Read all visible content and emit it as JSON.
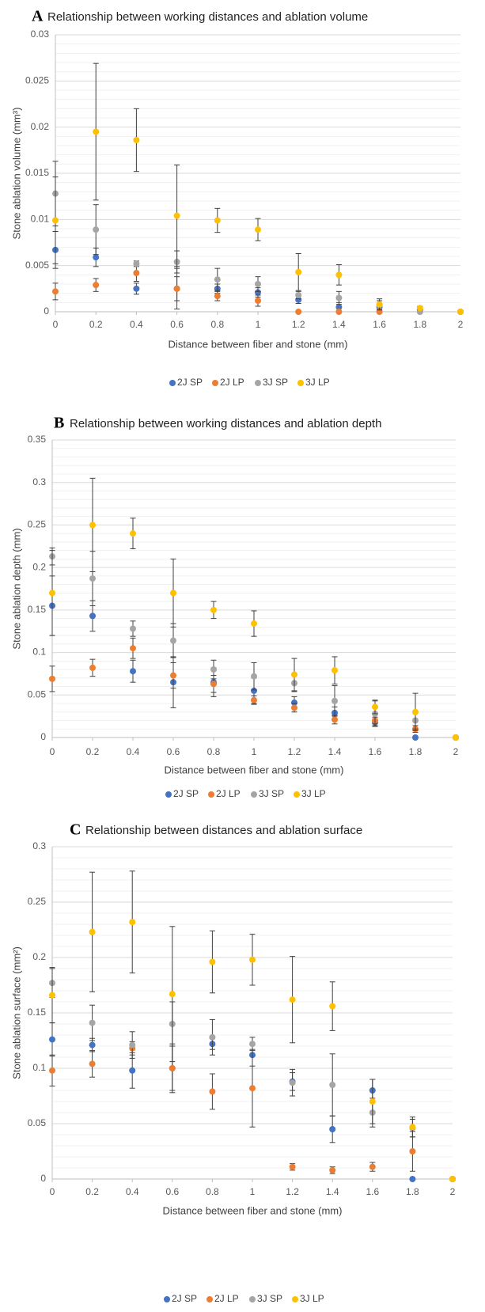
{
  "colors": {
    "2J SP": "#4472C4",
    "2J LP": "#ED7D31",
    "3J SP": "#A5A5A5",
    "3J LP": "#FFC000",
    "error_bar": "#404040",
    "grid": "#D9D9D9"
  },
  "chart_data": [
    {
      "type": "scatter",
      "letter": "A",
      "title": "Relationship between working distances and ablation volume",
      "xlabel": "Distance between fiber and stone (mm)",
      "ylabel": "Stone ablation volume (mm³)",
      "xlim": [
        0,
        2
      ],
      "ylim": [
        0,
        0.03
      ],
      "x_ticks": [
        "0",
        "0.2",
        "0.4",
        "0.6",
        "0.8",
        "1",
        "1.2",
        "1.4",
        "1.6",
        "1.8",
        "2"
      ],
      "y_ticks": [
        "0",
        "0.005",
        "0.01",
        "0.015",
        "0.02",
        "0.025",
        "0.03"
      ],
      "grid": "horizontal",
      "legend_position": "bottom",
      "series": [
        {
          "name": "2J SP",
          "x": [
            0,
            0.2,
            0.4,
            0.6,
            0.8,
            1,
            1.2,
            1.4,
            1.6,
            1.8,
            2
          ],
          "y": [
            0.0067,
            0.0059,
            0.0025,
            0.0025,
            0.0025,
            0.0021,
            0.0013,
            0.0005,
            0.0005,
            0.0002,
            0
          ],
          "err": [
            0.002,
            0.001,
            0.0006,
            0.0022,
            0.0005,
            0.0005,
            0.0004,
            0.0005,
            0.0004,
            0.0002,
            0
          ]
        },
        {
          "name": "2J LP",
          "x": [
            0,
            0.2,
            0.4,
            0.6,
            0.8,
            1,
            1.2,
            1.4,
            1.6,
            1.8,
            2
          ],
          "y": [
            0.0022,
            0.0029,
            0.0042,
            0.0025,
            0.0017,
            0.0012,
            0,
            0,
            0,
            0,
            0
          ],
          "err": [
            0.0009,
            0.0007,
            0.0009,
            0.0013,
            0.0005,
            0.0006,
            0,
            0,
            0,
            0,
            0
          ]
        },
        {
          "name": "3J SP",
          "x": [
            0,
            0.2,
            0.4,
            0.6,
            0.8,
            1,
            1.2,
            1.4,
            1.6,
            1.8,
            2
          ],
          "y": [
            0.0128,
            0.0089,
            0.0052,
            0.0054,
            0.0035,
            0.003,
            0.0018,
            0.0015,
            0.0007,
            0,
            0
          ],
          "err": [
            0.0035,
            0.0027,
            0.0003,
            0.0012,
            0.0012,
            0.0008,
            0.0004,
            0.0007,
            0.0005,
            0,
            0
          ]
        },
        {
          "name": "3J LP",
          "x": [
            0,
            0.2,
            0.4,
            0.6,
            0.8,
            1,
            1.2,
            1.4,
            1.6,
            1.8,
            2
          ],
          "y": [
            0.0099,
            0.0195,
            0.0186,
            0.0104,
            0.0099,
            0.0089,
            0.0043,
            0.004,
            0.0008,
            0.0004,
            0
          ],
          "err": [
            0.0047,
            0.0074,
            0.0034,
            0.0055,
            0.0013,
            0.0012,
            0.002,
            0.0011,
            0.0006,
            0.0002,
            0
          ]
        }
      ]
    },
    {
      "type": "scatter",
      "letter": "B",
      "title": "Relationship between working distances and ablation depth",
      "xlabel": "Distance between fiber and stone (mm)",
      "ylabel": "Stone ablation depth (mm)",
      "xlim": [
        0,
        2
      ],
      "ylim": [
        0,
        0.35
      ],
      "x_ticks": [
        "0",
        "0.2",
        "0.4",
        "0.6",
        "0.8",
        "1",
        "1.2",
        "1.4",
        "1.6",
        "1.8",
        "2"
      ],
      "y_ticks": [
        "0",
        "0.05",
        "0.1",
        "0.15",
        "0.2",
        "0.25",
        "0.3",
        "0.35"
      ],
      "grid": "horizontal",
      "legend_position": "bottom",
      "series": [
        {
          "name": "2J SP",
          "x": [
            0,
            0.2,
            0.4,
            0.6,
            0.8,
            1,
            1.2,
            1.4,
            1.6,
            1.8,
            2
          ],
          "y": [
            0.155,
            0.143,
            0.078,
            0.065,
            0.065,
            0.055,
            0.041,
            0.029,
            0.018,
            0,
            0
          ],
          "err": [
            0.035,
            0.018,
            0.013,
            0.03,
            0.017,
            0.015,
            0.007,
            0.007,
            0.004,
            0,
            0
          ]
        },
        {
          "name": "2J LP",
          "x": [
            0,
            0.2,
            0.4,
            0.6,
            0.8,
            1,
            1.2,
            1.4,
            1.6,
            1.8,
            2
          ],
          "y": [
            0.069,
            0.082,
            0.105,
            0.073,
            0.063,
            0.044,
            0.035,
            0.021,
            0.02,
            0.01,
            0
          ],
          "err": [
            0.015,
            0.01,
            0.012,
            0.015,
            0.01,
            0.005,
            0.005,
            0.005,
            0.004,
            0.004,
            0
          ]
        },
        {
          "name": "3J SP",
          "x": [
            0,
            0.2,
            0.4,
            0.6,
            0.8,
            1,
            1.2,
            1.4,
            1.6,
            1.8,
            2
          ],
          "y": [
            0.213,
            0.187,
            0.128,
            0.114,
            0.08,
            0.072,
            0.064,
            0.043,
            0.028,
            0.02,
            0
          ],
          "err": [
            0.01,
            0.032,
            0.009,
            0.02,
            0.011,
            0.016,
            0.01,
            0.018,
            0.015,
            0.01,
            0
          ]
        },
        {
          "name": "3J LP",
          "x": [
            0,
            0.2,
            0.4,
            0.6,
            0.8,
            1,
            1.2,
            1.4,
            1.6,
            1.8,
            2
          ],
          "y": [
            0.17,
            0.25,
            0.24,
            0.17,
            0.15,
            0.134,
            0.074,
            0.079,
            0.036,
            0.03,
            0
          ],
          "err": [
            0.05,
            0.055,
            0.018,
            0.04,
            0.01,
            0.015,
            0.019,
            0.016,
            0.008,
            0.022,
            0
          ]
        }
      ]
    },
    {
      "type": "scatter",
      "letter": "C",
      "title": "Relationship between distances and ablation surface",
      "xlabel": "Distance between fiber and stone (mm)",
      "ylabel": "Stone ablation surface (mm²)",
      "xlim": [
        0,
        2
      ],
      "ylim": [
        0,
        0.3
      ],
      "x_ticks": [
        "0",
        "0.2",
        "0.4",
        "0.6",
        "0.8",
        "1",
        "1.2",
        "1.4",
        "1.6",
        "1.8",
        "2"
      ],
      "y_ticks": [
        "0",
        "0.05",
        "0.1",
        "0.15",
        "0.2",
        "0.25",
        "0.3"
      ],
      "grid": "horizontal",
      "legend_position": "bottom",
      "series": [
        {
          "name": "2J SP",
          "x": [
            0,
            0.2,
            0.4,
            0.6,
            0.8,
            1,
            1.2,
            1.4,
            1.6,
            1.8,
            2
          ],
          "y": [
            0.126,
            0.121,
            0.098,
            0.1,
            0.122,
            0.112,
            0.088,
            0.045,
            0.08,
            0,
            0
          ],
          "err": [
            0.015,
            0.006,
            0.016,
            0.02,
            0.005,
            0.01,
            0.008,
            0.012,
            0.01,
            0,
            0
          ]
        },
        {
          "name": "2J LP",
          "x": [
            0,
            0.2,
            0.4,
            0.6,
            0.8,
            1,
            1.2,
            1.4,
            1.6,
            1.8,
            2
          ],
          "y": [
            0.098,
            0.104,
            0.118,
            0.1,
            0.079,
            0.082,
            0.011,
            0.008,
            0.011,
            0.025,
            0
          ],
          "err": [
            0.014,
            0.012,
            0.006,
            0.022,
            0.016,
            0.035,
            0.003,
            0.003,
            0.004,
            0.018,
            0
          ]
        },
        {
          "name": "3J SP",
          "x": [
            0,
            0.2,
            0.4,
            0.6,
            0.8,
            1,
            1.2,
            1.4,
            1.6,
            1.8,
            2
          ],
          "y": [
            0.177,
            0.141,
            0.121,
            0.14,
            0.128,
            0.122,
            0.087,
            0.085,
            0.06,
            0.046,
            0
          ],
          "err": [
            0.013,
            0.016,
            0.012,
            0.02,
            0.016,
            0.006,
            0.012,
            0.028,
            0.013,
            0.008,
            0
          ]
        },
        {
          "name": "3J LP",
          "x": [
            0,
            0.2,
            0.4,
            0.6,
            0.8,
            1,
            1.2,
            1.4,
            1.6,
            1.8,
            2
          ],
          "y": [
            0.166,
            0.223,
            0.232,
            0.167,
            0.196,
            0.198,
            0.162,
            0.156,
            0.07,
            0.047,
            0
          ],
          "err": [
            0.025,
            0.054,
            0.046,
            0.061,
            0.028,
            0.023,
            0.039,
            0.022,
            0.02,
            0.009,
            0
          ]
        }
      ]
    }
  ]
}
